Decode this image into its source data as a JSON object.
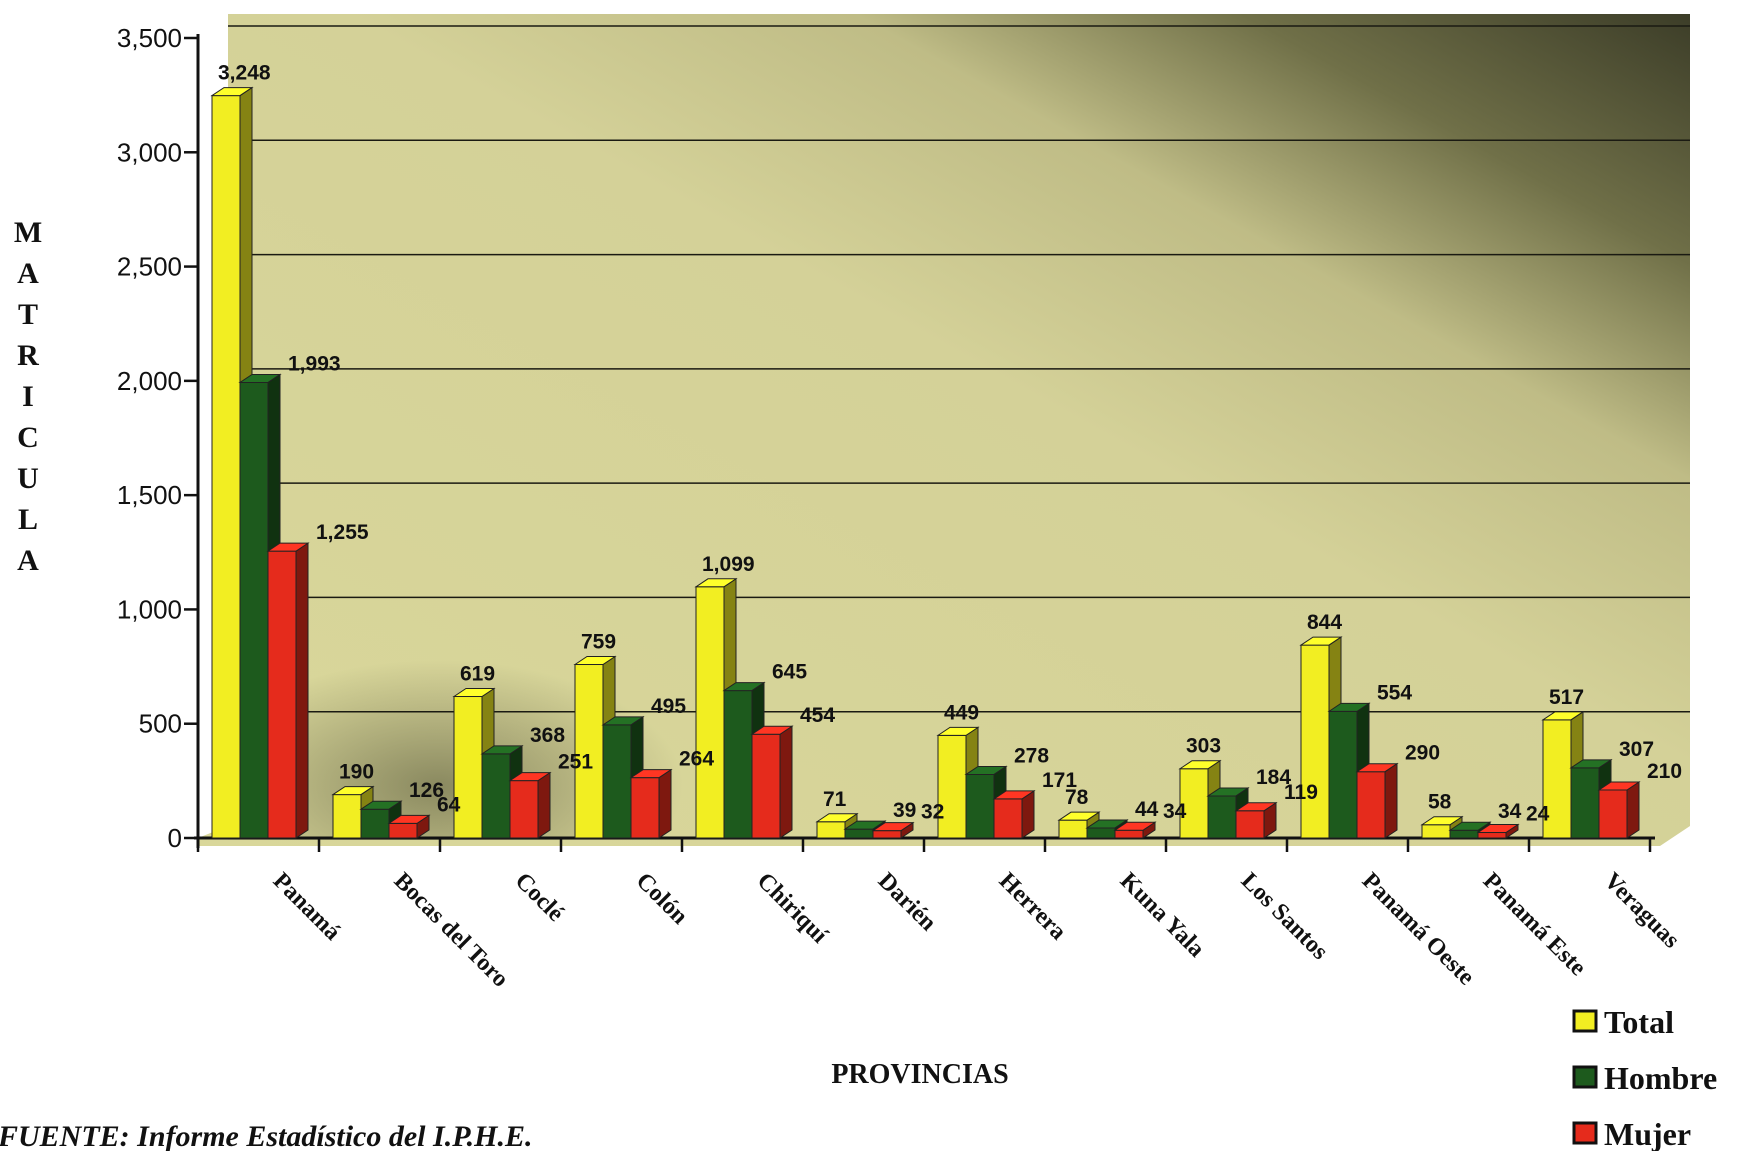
{
  "chart_data": {
    "type": "bar",
    "title": "",
    "xlabel": "PROVINCIAS",
    "ylabel": "MATRICULA",
    "ylim": [
      0,
      3500
    ],
    "yticks": [
      "0",
      "500",
      "1,000",
      "1,500",
      "2,000",
      "2,500",
      "3,000",
      "3,500"
    ],
    "ytick_values": [
      0,
      500,
      1000,
      1500,
      2000,
      2500,
      3000,
      3500
    ],
    "grid": true,
    "legend_position": "bottom-right",
    "categories": [
      "Panamá",
      "Bocas del Toro",
      "Coclé",
      "Colón",
      "Chiriquí",
      "Darién",
      "Herrera",
      "Kuna Yala",
      "Los Santos",
      "Panamá Oeste",
      "Panamá Este",
      "Veraguas"
    ],
    "series": [
      {
        "name": "Total",
        "color": "#f2ee22",
        "values": [
          3248,
          190,
          619,
          759,
          1099,
          71,
          449,
          78,
          303,
          844,
          58,
          517
        ],
        "labels": [
          "3,248",
          "190",
          "619",
          "759",
          "1,099",
          "71",
          "449",
          "78",
          "303",
          "844",
          "58",
          "517"
        ]
      },
      {
        "name": "Hombre",
        "color": "#1d5a1d",
        "values": [
          1993,
          126,
          368,
          495,
          645,
          39,
          278,
          44,
          184,
          554,
          34,
          307
        ],
        "labels": [
          "1,993",
          "126",
          "368",
          "495",
          "645",
          "39",
          "278",
          "44",
          "184",
          "554",
          "34",
          "307"
        ]
      },
      {
        "name": "Mujer",
        "color": "#e52b1c",
        "values": [
          1255,
          64,
          251,
          264,
          454,
          32,
          171,
          34,
          119,
          290,
          24,
          210
        ],
        "labels": [
          "1,255",
          "64",
          "251",
          "264",
          "454",
          "32",
          "171",
          "34",
          "119",
          "290",
          "24",
          "210"
        ]
      }
    ]
  },
  "footer": {
    "source": "FUENTE:  Informe Estadístico del I.P.H.E."
  }
}
